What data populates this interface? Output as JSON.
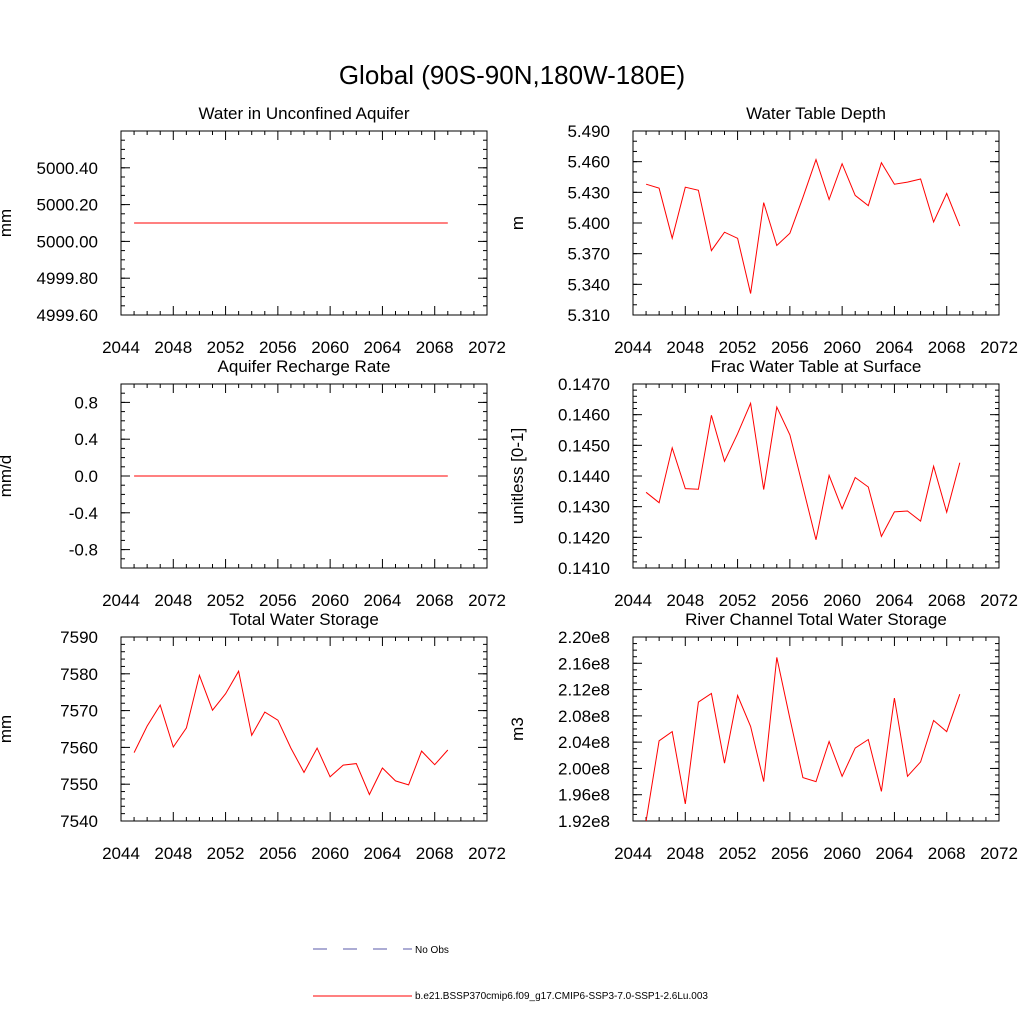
{
  "figure": {
    "title": "Global (90S-90N,180W-180E)",
    "series_color": "#ff0000",
    "obs_color": "#5a5aa8"
  },
  "legend": {
    "obs_label": "No Obs",
    "model_label": "b.e21.BSSP370cmip6.f09_g17.CMIP6-SSP3-7.0-SSP1-2.6Lu.003"
  },
  "chart_data": [
    {
      "type": "line",
      "title": "Water in Unconfined Aquifer",
      "xlabel": "",
      "ylabel": "mm",
      "xlim": [
        2044,
        2072
      ],
      "ylim": [
        4999.6,
        5000.6
      ],
      "x_ticks": [
        2044,
        2048,
        2052,
        2056,
        2060,
        2064,
        2068,
        2072
      ],
      "y_ticks": [
        4999.6,
        4999.8,
        5000.0,
        5000.2,
        5000.4
      ],
      "y_tick_labels": [
        "4999.60",
        "4999.80",
        "5000.00",
        "5000.20",
        "5000.40"
      ],
      "y_minor": 0.05,
      "x": [
        2045,
        2046,
        2047,
        2048,
        2049,
        2050,
        2051,
        2052,
        2053,
        2054,
        2055,
        2056,
        2057,
        2058,
        2059,
        2060,
        2061,
        2062,
        2063,
        2064,
        2065,
        2066,
        2067,
        2068,
        2069
      ],
      "values": [
        5000.1,
        5000.1,
        5000.1,
        5000.1,
        5000.1,
        5000.1,
        5000.1,
        5000.1,
        5000.1,
        5000.1,
        5000.1,
        5000.1,
        5000.1,
        5000.1,
        5000.1,
        5000.1,
        5000.1,
        5000.1,
        5000.1,
        5000.1,
        5000.1,
        5000.1,
        5000.1,
        5000.1,
        5000.1
      ]
    },
    {
      "type": "line",
      "title": "Water Table Depth",
      "xlabel": "",
      "ylabel": "m",
      "xlim": [
        2044,
        2072
      ],
      "ylim": [
        5.31,
        5.49
      ],
      "x_ticks": [
        2044,
        2048,
        2052,
        2056,
        2060,
        2064,
        2068,
        2072
      ],
      "y_ticks": [
        5.31,
        5.34,
        5.37,
        5.4,
        5.43,
        5.46,
        5.49
      ],
      "y_tick_labels": [
        "5.310",
        "5.340",
        "5.370",
        "5.400",
        "5.430",
        "5.460",
        "5.490"
      ],
      "y_minor": 0.01,
      "x": [
        2045,
        2046,
        2047,
        2048,
        2049,
        2050,
        2051,
        2052,
        2053,
        2054,
        2055,
        2056,
        2057,
        2058,
        2059,
        2060,
        2061,
        2062,
        2063,
        2064,
        2065,
        2066,
        2067,
        2068,
        2069
      ],
      "values": [
        5.438,
        5.434,
        5.385,
        5.435,
        5.432,
        5.373,
        5.391,
        5.385,
        5.331,
        5.42,
        5.378,
        5.39,
        5.425,
        5.462,
        5.423,
        5.458,
        5.427,
        5.417,
        5.459,
        5.438,
        5.44,
        5.443,
        5.401,
        5.429,
        5.397
      ]
    },
    {
      "type": "line",
      "title": "Aquifer Recharge Rate",
      "xlabel": "",
      "ylabel": "mm/d",
      "xlim": [
        2044,
        2072
      ],
      "ylim": [
        -1.0,
        1.0
      ],
      "x_ticks": [
        2044,
        2048,
        2052,
        2056,
        2060,
        2064,
        2068,
        2072
      ],
      "y_ticks": [
        -0.8,
        -0.4,
        0.0,
        0.4,
        0.8
      ],
      "y_tick_labels": [
        "-0.8",
        "-0.4",
        "0.0",
        "0.4",
        "0.8"
      ],
      "y_minor": 0.1,
      "x": [
        2045,
        2046,
        2047,
        2048,
        2049,
        2050,
        2051,
        2052,
        2053,
        2054,
        2055,
        2056,
        2057,
        2058,
        2059,
        2060,
        2061,
        2062,
        2063,
        2064,
        2065,
        2066,
        2067,
        2068,
        2069
      ],
      "values": [
        0,
        0,
        0,
        0,
        0,
        0,
        0,
        0,
        0,
        0,
        0,
        0,
        0,
        0,
        0,
        0,
        0,
        0,
        0,
        0,
        0,
        0,
        0,
        0,
        0
      ]
    },
    {
      "type": "line",
      "title": "Frac Water Table at Surface",
      "xlabel": "",
      "ylabel": "unitless [0-1]",
      "xlim": [
        2044,
        2072
      ],
      "ylim": [
        0.141,
        0.147
      ],
      "x_ticks": [
        2044,
        2048,
        2052,
        2056,
        2060,
        2064,
        2068,
        2072
      ],
      "y_ticks": [
        0.141,
        0.142,
        0.143,
        0.144,
        0.145,
        0.146,
        0.147
      ],
      "y_tick_labels": [
        "0.1410",
        "0.1420",
        "0.1430",
        "0.1440",
        "0.1450",
        "0.1460",
        "0.1470"
      ],
      "y_minor": 0.0002,
      "x": [
        2045,
        2046,
        2047,
        2048,
        2049,
        2050,
        2051,
        2052,
        2053,
        2054,
        2055,
        2056,
        2057,
        2058,
        2059,
        2060,
        2061,
        2062,
        2063,
        2064,
        2065,
        2066,
        2067,
        2068,
        2069
      ],
      "values": [
        0.14347,
        0.14313,
        0.14492,
        0.14359,
        0.14357,
        0.14598,
        0.14448,
        0.14538,
        0.14637,
        0.14356,
        0.14625,
        0.14534,
        0.14364,
        0.14192,
        0.14402,
        0.14293,
        0.14395,
        0.14364,
        0.14203,
        0.14283,
        0.14286,
        0.14253,
        0.14432,
        0.14282,
        0.14443
      ]
    },
    {
      "type": "line",
      "title": "Total Water Storage",
      "xlabel": "",
      "ylabel": "mm",
      "xlim": [
        2044,
        2072
      ],
      "ylim": [
        7540,
        7590
      ],
      "x_ticks": [
        2044,
        2048,
        2052,
        2056,
        2060,
        2064,
        2068,
        2072
      ],
      "y_ticks": [
        7540,
        7550,
        7560,
        7570,
        7580,
        7590
      ],
      "y_tick_labels": [
        "7540",
        "7550",
        "7560",
        "7570",
        "7580",
        "7590"
      ],
      "y_minor": 2,
      "x": [
        2045,
        2046,
        2047,
        2048,
        2049,
        2050,
        2051,
        2052,
        2053,
        2054,
        2055,
        2056,
        2057,
        2058,
        2059,
        2060,
        2061,
        2062,
        2063,
        2064,
        2065,
        2066,
        2067,
        2068,
        2069
      ],
      "values": [
        7558.6,
        7565.8,
        7571.5,
        7560.1,
        7565.3,
        7579.6,
        7570.1,
        7574.6,
        7580.7,
        7563.3,
        7569.6,
        7567.4,
        7559.8,
        7553.2,
        7559.8,
        7552.0,
        7555.2,
        7555.6,
        7547.2,
        7554.4,
        7550.9,
        7549.8,
        7559.0,
        7555.3,
        7559.3
      ]
    },
    {
      "type": "line",
      "title": "River Channel Total Water Storage",
      "xlabel": "",
      "ylabel": "m3",
      "xlim": [
        2044,
        2072
      ],
      "ylim": [
        192000000.0,
        220000000.0
      ],
      "x_ticks": [
        2044,
        2048,
        2052,
        2056,
        2060,
        2064,
        2068,
        2072
      ],
      "y_ticks": [
        192000000.0,
        196000000.0,
        200000000.0,
        204000000.0,
        208000000.0,
        212000000.0,
        216000000.0,
        220000000.0
      ],
      "y_tick_labels": [
        "1.92e8",
        "1.96e8",
        "2.00e8",
        "2.04e8",
        "2.08e8",
        "2.12e8",
        "2.16e8",
        "2.20e8"
      ],
      "y_minor": 1000000.0,
      "x": [
        2045,
        2046,
        2047,
        2048,
        2049,
        2050,
        2051,
        2052,
        2053,
        2054,
        2055,
        2056,
        2057,
        2058,
        2059,
        2060,
        2061,
        2062,
        2063,
        2064,
        2065,
        2066,
        2067,
        2068,
        2069
      ],
      "values": [
        192000000.0,
        204200000.0,
        205600000.0,
        194600000.0,
        210100000.0,
        211400000.0,
        200800000.0,
        211100000.0,
        206400000.0,
        198000000.0,
        216900000.0,
        207600000.0,
        198600000.0,
        198000000.0,
        204100000.0,
        198800000.0,
        203100000.0,
        204400000.0,
        196500000.0,
        210700000.0,
        198800000.0,
        201000000.0,
        207300000.0,
        205600000.0,
        211300000.0
      ]
    }
  ]
}
